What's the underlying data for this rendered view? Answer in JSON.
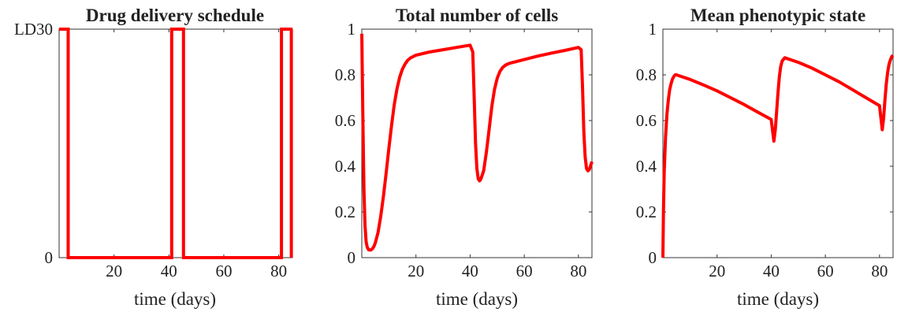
{
  "chart_data": [
    {
      "type": "line",
      "title": "Drug delivery schedule",
      "xlabel": "time (days)",
      "ylabel": "",
      "xlim": [
        0,
        85
      ],
      "ylim": [
        0,
        1
      ],
      "xticks": [
        20,
        40,
        60,
        80
      ],
      "yticks": [
        0,
        1
      ],
      "yticklabels": [
        "0",
        "LD30"
      ],
      "grid": false,
      "color": "#ff0000",
      "series": [
        {
          "x": [
            0,
            3.3,
            3.3,
            41,
            41,
            45.3,
            45.3,
            81,
            81,
            85
          ],
          "y": [
            1,
            1,
            0,
            0,
            1,
            1,
            0,
            0,
            1,
            1
          ]
        },
        {
          "x": [
            84.6,
            84.6
          ],
          "y": [
            1,
            0
          ]
        }
      ]
    },
    {
      "type": "line",
      "title": "Total number of cells",
      "xlabel": "time (days)",
      "ylabel": "",
      "xlim": [
        0,
        85
      ],
      "ylim": [
        0,
        1
      ],
      "xticks": [
        20,
        40,
        60,
        80
      ],
      "yticks": [
        0,
        0.2,
        0.4,
        0.6,
        0.8,
        1
      ],
      "yticklabels": [
        "0",
        "0.2",
        "0.4",
        "0.6",
        "0.8",
        "1"
      ],
      "grid": false,
      "color": "#ff0000",
      "series": [
        {
          "x": [
            0,
            0.4,
            0.8,
            1.2,
            1.6,
            2,
            2.5,
            3,
            3.5,
            4,
            4.5,
            5,
            6,
            7,
            8,
            9,
            10,
            11,
            12,
            13,
            14,
            15,
            16,
            17,
            18,
            20,
            25,
            30,
            35,
            40,
            41,
            41.5,
            42,
            42.5,
            43,
            43.5,
            44,
            45,
            46,
            47,
            48,
            49,
            50,
            51,
            52,
            53,
            54,
            55,
            57,
            60,
            65,
            70,
            75,
            80,
            81,
            81.5,
            82,
            82.5,
            83,
            83.5,
            84,
            85
          ],
          "y": [
            0.98,
            0.6,
            0.3,
            0.14,
            0.07,
            0.045,
            0.035,
            0.033,
            0.034,
            0.04,
            0.05,
            0.065,
            0.11,
            0.18,
            0.27,
            0.37,
            0.48,
            0.58,
            0.67,
            0.74,
            0.79,
            0.825,
            0.848,
            0.864,
            0.874,
            0.886,
            0.9,
            0.91,
            0.92,
            0.93,
            0.9,
            0.7,
            0.5,
            0.39,
            0.345,
            0.336,
            0.345,
            0.38,
            0.46,
            0.56,
            0.66,
            0.735,
            0.785,
            0.815,
            0.832,
            0.842,
            0.848,
            0.852,
            0.858,
            0.867,
            0.882,
            0.895,
            0.907,
            0.92,
            0.91,
            0.75,
            0.55,
            0.44,
            0.39,
            0.38,
            0.385,
            0.42
          ]
        }
      ]
    },
    {
      "type": "line",
      "title": "Mean phenotypic state",
      "xlabel": "time (days)",
      "ylabel": "",
      "xlim": [
        0,
        85
      ],
      "ylim": [
        0,
        1
      ],
      "xticks": [
        20,
        40,
        60,
        80
      ],
      "yticks": [
        0,
        0.2,
        0.4,
        0.6,
        0.8,
        1
      ],
      "yticklabels": [
        "0",
        "0.2",
        "0.4",
        "0.6",
        "0.8",
        "1"
      ],
      "grid": false,
      "color": "#ff0000",
      "series": [
        {
          "x": [
            0,
            0.2,
            0.5,
            1,
            1.5,
            2,
            2.5,
            3,
            3.5,
            4,
            4.5,
            5,
            10,
            15,
            20,
            25,
            30,
            35,
            40,
            41,
            41.5,
            42,
            42.5,
            43,
            43.5,
            44,
            45,
            50,
            55,
            60,
            65,
            70,
            75,
            80,
            81,
            81.5,
            82,
            82.5,
            83,
            83.5,
            84,
            84.5,
            85
          ],
          "y": [
            0,
            0.2,
            0.38,
            0.53,
            0.63,
            0.69,
            0.735,
            0.76,
            0.78,
            0.792,
            0.8,
            0.8,
            0.78,
            0.756,
            0.73,
            0.7,
            0.67,
            0.637,
            0.605,
            0.51,
            0.56,
            0.64,
            0.72,
            0.79,
            0.835,
            0.86,
            0.875,
            0.855,
            0.83,
            0.8,
            0.77,
            0.735,
            0.7,
            0.665,
            0.56,
            0.61,
            0.69,
            0.76,
            0.81,
            0.845,
            0.865,
            0.88,
            0.885
          ]
        }
      ]
    }
  ]
}
